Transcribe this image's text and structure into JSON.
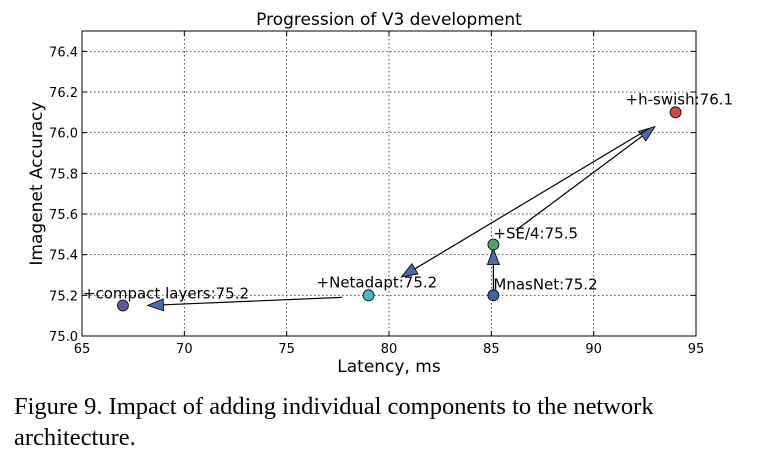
{
  "chart_data": {
    "type": "scatter",
    "title": "Progression of V3 development",
    "xlabel": "Latency, ms",
    "ylabel": "Imagenet Accuracy",
    "xlim": [
      65,
      95
    ],
    "ylim": [
      75.0,
      76.5
    ],
    "xticks": [
      65,
      70,
      75,
      80,
      85,
      90,
      95
    ],
    "yticks": [
      75.0,
      75.2,
      75.4,
      75.6,
      75.8,
      76.0,
      76.2,
      76.4
    ],
    "grid": true,
    "points": [
      {
        "label": "MnasNet:75.2",
        "x": 85.1,
        "y": 75.2,
        "color": "#3e63a8"
      },
      {
        "label": "+SE/4:75.5",
        "x": 85.1,
        "y": 75.45,
        "color": "#4aa56a"
      },
      {
        "label": "+h-swish:76.1",
        "x": 94.0,
        "y": 76.1,
        "color": "#d04848"
      },
      {
        "label": "+Netadapt:75.2",
        "x": 79.0,
        "y": 75.2,
        "color": "#4fb4c8"
      },
      {
        "label": "+compact layers:75.2",
        "x": 67.0,
        "y": 75.15,
        "color": "#6a55a0"
      }
    ],
    "arrows": [
      {
        "from": [
          85.1,
          75.22
        ],
        "to": [
          85.1,
          75.43
        ]
      },
      {
        "from": [
          86.2,
          75.52
        ],
        "to": [
          93.0,
          76.03
        ]
      },
      {
        "from": [
          92.7,
          76.02
        ],
        "to": [
          80.6,
          75.29
        ]
      },
      {
        "from": [
          77.7,
          75.19
        ],
        "to": [
          68.2,
          75.15
        ]
      }
    ],
    "arrow_color": "#4a6aaa"
  },
  "caption": "Figure 9. Impact of adding individual components to the network architecture."
}
